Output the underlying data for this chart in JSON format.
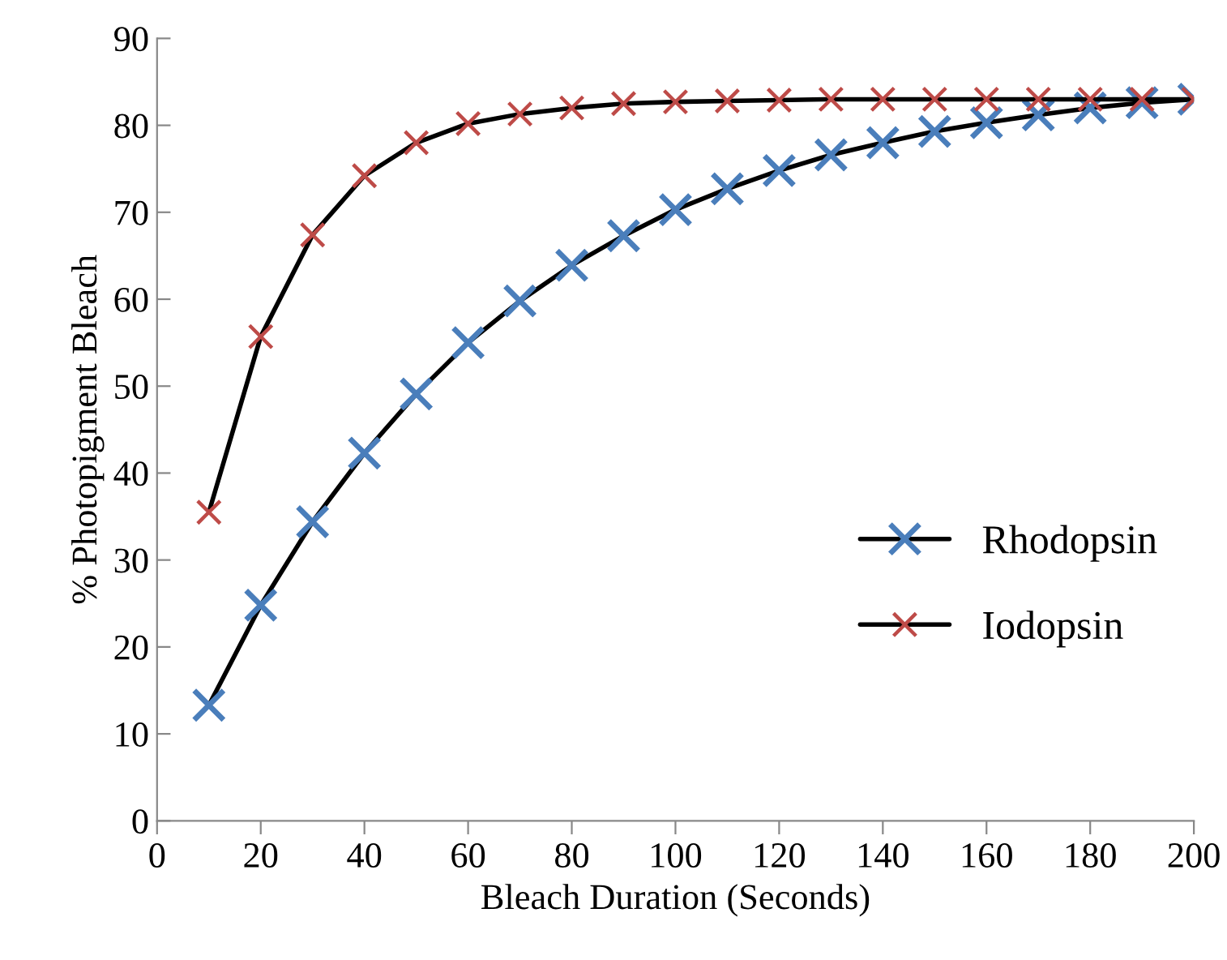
{
  "chart_data": {
    "type": "line",
    "xlabel": "Bleach Duration (Seconds)",
    "ylabel": "% Photopigment Bleach",
    "x": [
      10,
      20,
      30,
      40,
      50,
      60,
      70,
      80,
      90,
      100,
      110,
      120,
      130,
      140,
      150,
      160,
      170,
      180,
      190,
      200
    ],
    "series": [
      {
        "name": "Rhodopsin",
        "color": "#4a7ebb",
        "values": [
          13.3,
          24.8,
          34.4,
          42.3,
          49.1,
          55.0,
          59.8,
          63.9,
          67.3,
          70.3,
          72.7,
          74.8,
          76.6,
          78.0,
          79.3,
          80.3,
          81.2,
          82.0,
          82.6,
          83.0
        ]
      },
      {
        "name": "Iodopsin",
        "color": "#be4b48",
        "values": [
          35.5,
          55.7,
          67.4,
          74.2,
          78.0,
          80.2,
          81.3,
          82.0,
          82.5,
          82.7,
          82.8,
          82.9,
          83.0,
          83.0,
          83.0,
          83.0,
          83.0,
          83.0,
          83.0,
          83.0
        ]
      }
    ],
    "xlim": [
      0,
      200
    ],
    "xticks": [
      0,
      20,
      40,
      60,
      80,
      100,
      120,
      140,
      160,
      180,
      200
    ],
    "ylim": [
      0,
      90
    ],
    "yticks": [
      0,
      10,
      20,
      30,
      40,
      50,
      60,
      70,
      80,
      90
    ],
    "grid": false,
    "legend": "right",
    "marker": "cross",
    "line_style": "solid"
  }
}
